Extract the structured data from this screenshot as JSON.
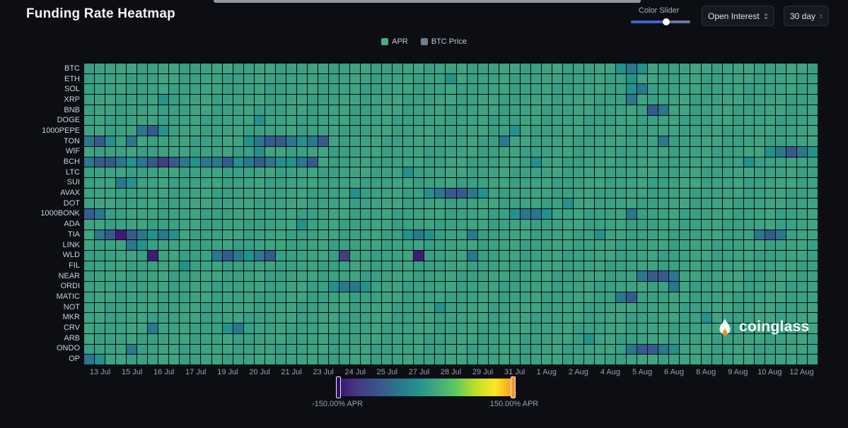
{
  "header": {
    "title": "Funding Rate Heatmap",
    "color_slider_label": "Color Slider",
    "open_interest_label": "Open Interest",
    "range_select_label": "30 day"
  },
  "legend": {
    "items": [
      {
        "label": "APR",
        "color": "#46ae7c"
      },
      {
        "label": "BTC Price",
        "color": "#6e7e90"
      }
    ]
  },
  "watermark": {
    "text": "coinglass"
  },
  "colorbar": {
    "min_label": "-150.00% APR",
    "max_label": "150.00% APR",
    "stops": [
      "#3B0F70",
      "#443A83",
      "#3B528B",
      "#2C728E",
      "#21908D",
      "#42A580",
      "#5DC863",
      "#BADE28",
      "#FDE725",
      "#F8961E"
    ]
  },
  "chart_data": {
    "type": "heatmap",
    "title": "Funding Rate Heatmap",
    "value_unit": "% APR",
    "value_range": [
      -150,
      150
    ],
    "x_labels": [
      "13 Jul",
      "15 Jul",
      "16 Jul",
      "17 Jul",
      "19 Jul",
      "20 Jul",
      "21 Jul",
      "23 Jul",
      "24 Jul",
      "25 Jul",
      "27 Jul",
      "28 Jul",
      "29 Jul",
      "31 Jul",
      "1 Aug",
      "2 Aug",
      "4 Aug",
      "5 Aug",
      "6 Aug",
      "8 Aug",
      "9 Aug",
      "10 Aug",
      "12 Aug"
    ],
    "cells_per_day": 3,
    "base_value": 11,
    "levels": {
      "k": 30,
      "l": 2,
      "f": -15,
      "g": -45,
      "h": -75,
      "i": -110,
      "j": -140
    },
    "encoding": "each char is one 8h funding cell, '.' = typical positive APR near base_value, letters map to levels (% APR); strings are padded with '.' to full width",
    "rows": [
      {
        "symbol": "BTC",
        "cells": "..................................................fgf"
      },
      {
        "symbol": "ETH",
        "cells": "..................................f................f"
      },
      {
        "symbol": "SOL",
        "cells": "...................................................fg"
      },
      {
        "symbol": "XRP",
        "cells": ".......f...........................................g"
      },
      {
        "symbol": "BNB",
        "cells": ".....................................................hg"
      },
      {
        "symbol": "DOGE",
        "cells": "................f"
      },
      {
        "symbol": "1000PEPE",
        "cells": ".....ghf................................f"
      },
      {
        "symbol": "TON",
        "cells": "ghf.g..........fghhgfgh................g..............g"
      },
      {
        "symbol": "WIF",
        "cells": "................f...............................................fghgf"
      },
      {
        "symbol": "BCH",
        "cells": "ghhgfghihgfgghfghgffgh....................f...................f"
      },
      {
        "symbol": "LTC",
        "cells": "..............................f"
      },
      {
        "symbol": "SUI",
        "cells": "...gf"
      },
      {
        "symbol": "AVAX",
        "cells": ".........................f......fghhgf"
      },
      {
        "symbol": "DOT",
        "cells": ".............................................f"
      },
      {
        "symbol": "1000BONK",
        "cells": "hg......................................fggf.......g"
      },
      {
        "symbol": "ADA",
        "cells": "....................f"
      },
      {
        "symbol": "TIA",
        "cells": ".ghjhgfgf.....................fgf...g...........f..............ghg"
      },
      {
        "symbol": "LINK",
        "cells": "....gf"
      },
      {
        "symbol": "WLD",
        "cells": "......j.....ghgfgh......i......j....g"
      },
      {
        "symbol": "FIL",
        "cells": ".........f"
      },
      {
        "symbol": "NEAR",
        "cells": "....................................................ghhg"
      },
      {
        "symbol": "ORDI",
        "cells": ".......................fggf............................g"
      },
      {
        "symbol": "MATIC",
        "cells": "..................................................gh"
      },
      {
        "symbol": "NOT",
        "cells": ".................................f"
      },
      {
        "symbol": "MKR",
        "cells": "..........................................................f"
      },
      {
        "symbol": "CRV",
        "cells": "......g......fg"
      },
      {
        "symbol": "ARB",
        "cells": "...............................................f"
      },
      {
        "symbol": "ONDO",
        "cells": "....g..............................................ghhgf"
      },
      {
        "symbol": "OP",
        "cells": "gf"
      }
    ]
  }
}
